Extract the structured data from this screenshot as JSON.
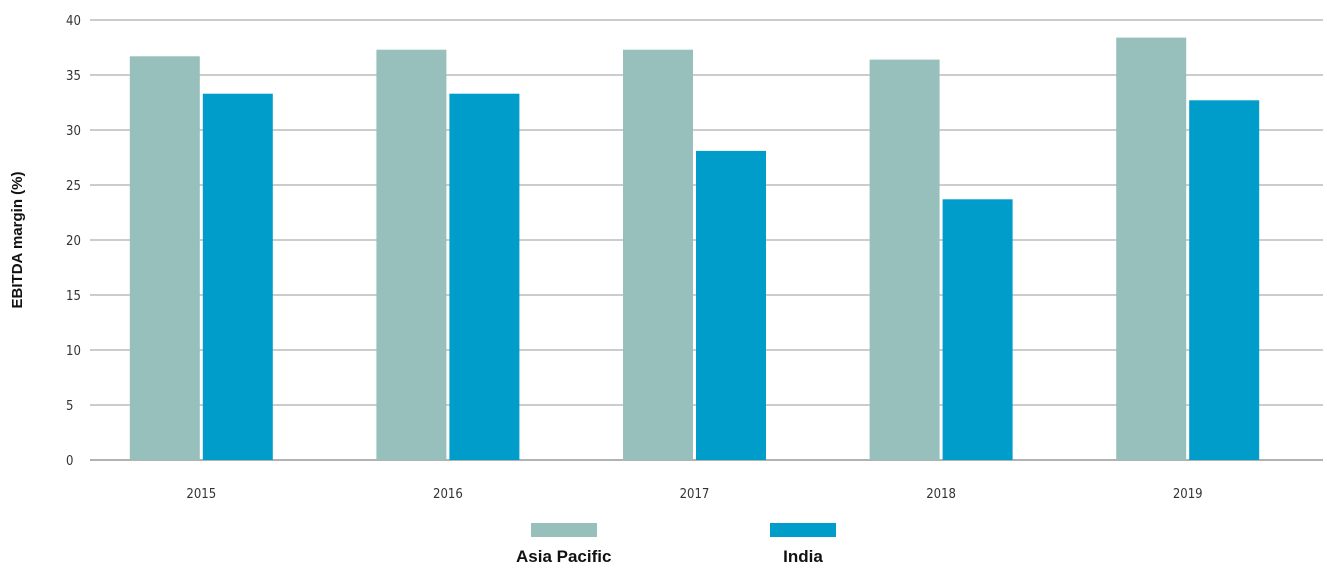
{
  "chart_data": {
    "type": "bar",
    "categories": [
      "2015",
      "2016",
      "2017",
      "2018",
      "2019"
    ],
    "series": [
      {
        "name": "Asia Pacific",
        "color": "#97c0bd",
        "values": [
          36.7,
          37.3,
          37.3,
          36.4,
          38.4
        ]
      },
      {
        "name": "India",
        "color": "#009dcb",
        "values": [
          33.3,
          33.3,
          28.1,
          23.7,
          32.7
        ]
      }
    ],
    "title": "",
    "xlabel": "",
    "ylabel": "EBITDA margin (%)",
    "ylim": [
      0,
      40
    ],
    "yticks": [
      "0",
      "5",
      "10",
      "15",
      "20",
      "25",
      "30",
      "35",
      "40"
    ],
    "grid": true,
    "legend_position": "bottom"
  }
}
